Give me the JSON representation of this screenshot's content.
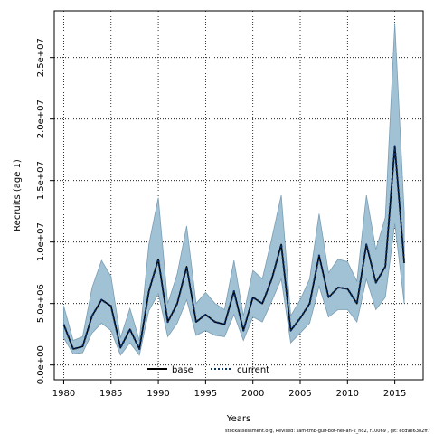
{
  "chart_data": {
    "type": "line",
    "title": "",
    "xlabel": "Years",
    "ylabel": "Recruits (age 1)",
    "xlim": [
      1979,
      2018
    ],
    "ylim": [
      -1200000,
      28800000
    ],
    "x_ticks": [
      1980,
      1985,
      1990,
      1995,
      2000,
      2005,
      2010,
      2015
    ],
    "y_ticks": [
      0,
      5000000,
      10000000,
      15000000,
      20000000,
      25000000
    ],
    "y_tick_labels": [
      "0.0e+00",
      "5.0e+06",
      "1.0e+07",
      "1.5e+07",
      "2.0e+07",
      "2.5e+07"
    ],
    "grid": true,
    "legend_position": "bottom",
    "x": [
      1980,
      1981,
      1982,
      1983,
      1984,
      1985,
      1986,
      1987,
      1988,
      1989,
      1990,
      1991,
      1992,
      1993,
      1994,
      1995,
      1996,
      1997,
      1998,
      1999,
      2000,
      2001,
      2002,
      2003,
      2004,
      2005,
      2006,
      2007,
      2008,
      2009,
      2010,
      2011,
      2012,
      2013,
      2014,
      2015,
      2016
    ],
    "series": [
      {
        "name": "base",
        "values": [
          3300000,
          1300000,
          1500000,
          4000000,
          5300000,
          4800000,
          1400000,
          2900000,
          1300000,
          6000000,
          8600000,
          3500000,
          5000000,
          8000000,
          3500000,
          4100000,
          3500000,
          3300000,
          6000000,
          2800000,
          5500000,
          5000000,
          7000000,
          9800000,
          2800000,
          3800000,
          5000000,
          8900000,
          5500000,
          6300000,
          6200000,
          5000000,
          9800000,
          6700000,
          8000000,
          17800000,
          8300000
        ]
      },
      {
        "name": "current",
        "values": [
          3300000,
          1300000,
          1500000,
          4000000,
          5300000,
          4800000,
          1400000,
          2900000,
          1300000,
          6000000,
          8600000,
          3500000,
          5000000,
          8000000,
          3500000,
          4100000,
          3500000,
          3300000,
          6000000,
          2800000,
          5500000,
          5000000,
          7000000,
          9800000,
          2800000,
          3800000,
          5000000,
          8900000,
          5500000,
          6300000,
          6200000,
          5000000,
          9800000,
          6700000,
          8000000,
          17800000,
          8300000
        ]
      }
    ],
    "interval": {
      "upper": [
        4800000,
        2000000,
        2300000,
        6300000,
        8500000,
        7200000,
        2200000,
        4600000,
        2000000,
        9800000,
        13600000,
        5000000,
        7400000,
        11300000,
        5000000,
        5900000,
        5000000,
        4500000,
        8500000,
        4000000,
        7700000,
        7000000,
        10300000,
        13800000,
        4000000,
        5300000,
        7000000,
        12300000,
        7500000,
        8600000,
        8400000,
        6800000,
        13800000,
        9400000,
        12000000,
        27800000,
        12400000
      ],
      "lower": [
        2200000,
        900000,
        1000000,
        2600000,
        3400000,
        2800000,
        800000,
        1800000,
        800000,
        4400000,
        5800000,
        2300000,
        3400000,
        5300000,
        2400000,
        2800000,
        2400000,
        2300000,
        4100000,
        2000000,
        3900000,
        3500000,
        5200000,
        7000000,
        1800000,
        2600000,
        3400000,
        6400000,
        3900000,
        4500000,
        4500000,
        3500000,
        7000000,
        4500000,
        5500000,
        11500000,
        5000000
      ]
    },
    "colors": {
      "band_fill": "#a1c1d4",
      "band_stroke": "#7a9eb4",
      "base_line": "#000000",
      "current_line": "#0a2f66"
    }
  },
  "footnote": "stockassessment.org, Revised: sam-tmb-gulf-bot-her-an-2_no2, r10069 , git: ecd9e6382ff7"
}
